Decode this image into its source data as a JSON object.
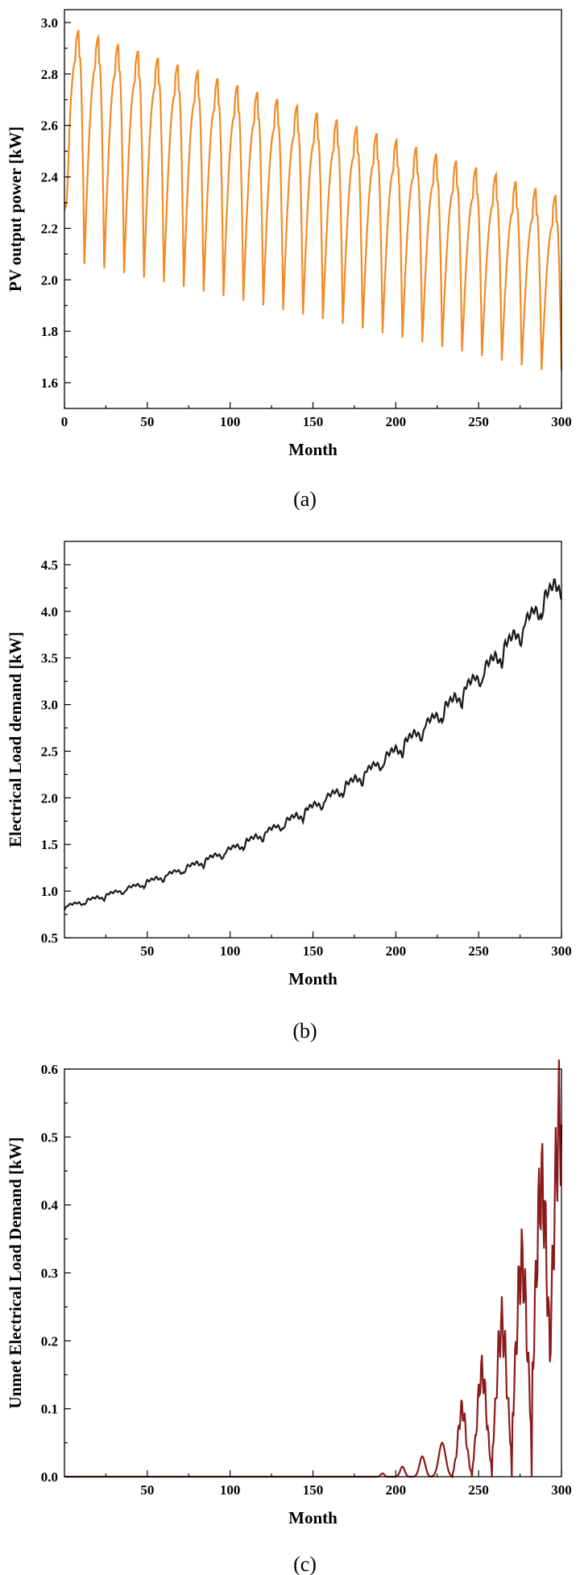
{
  "chart_data": [
    {
      "type": "line",
      "caption": "(a)",
      "xlabel": "Month",
      "ylabel": "PV output power [kW]",
      "xlim": [
        0,
        300
      ],
      "ylim": [
        1.5,
        3.05
      ],
      "xticks": [
        0,
        50,
        100,
        150,
        200,
        250,
        300
      ],
      "yticks": [
        1.6,
        1.8,
        2.0,
        2.2,
        2.4,
        2.6,
        2.8,
        3.0
      ],
      "ytick_labels": [
        "1.6",
        "1.8",
        "2.0",
        "2.2",
        "2.4",
        "2.6",
        "2.8",
        "3.0"
      ],
      "color": "#f28a25",
      "minor_ticks": true,
      "series": [
        {
          "model": "seasonal",
          "years": 25,
          "peak_start": 2.97,
          "peak_end": 2.33,
          "trough_start": 2.08,
          "trough_end": 1.65,
          "start_value": 2.3
        }
      ]
    },
    {
      "type": "line",
      "caption": "(b)",
      "xlabel": "Month",
      "ylabel": "Electrical Load demand [kW]",
      "xlim": [
        0,
        300
      ],
      "ylim": [
        0.5,
        4.75
      ],
      "xticks": [
        50,
        100,
        150,
        200,
        250,
        300
      ],
      "yticks": [
        0.5,
        1.0,
        1.5,
        2.0,
        2.5,
        3.0,
        3.5,
        4.0,
        4.5
      ],
      "ytick_labels": [
        "0.5",
        "1.0",
        "1.5",
        "2.0",
        "2.5",
        "3.0",
        "3.5",
        "4.0",
        "4.5"
      ],
      "color": "#1a1a1a",
      "minor_ticks": true,
      "series": [
        {
          "model": "stepped-growth",
          "start_value": 0.82,
          "end_value": 4.3,
          "years": 25
        }
      ]
    },
    {
      "type": "line",
      "caption": "(c)",
      "xlabel": "Month",
      "ylabel": "Unmet Electrical Load Demand [kW]",
      "xlim": [
        0,
        300
      ],
      "ylim": [
        0,
        0.6
      ],
      "xticks": [
        50,
        100,
        150,
        200,
        250,
        300
      ],
      "yticks": [
        0.0,
        0.1,
        0.2,
        0.3,
        0.4,
        0.5,
        0.6
      ],
      "ytick_labels": [
        "0.0",
        "0.1",
        "0.2",
        "0.3",
        "0.4",
        "0.5",
        "0.6"
      ],
      "color": "#8b1a1a",
      "minor_ticks": true,
      "series": [
        {
          "model": "annual-spikes",
          "spike_months": [
            192,
            204,
            216,
            228,
            240,
            252,
            264,
            276,
            288,
            299
          ],
          "spike_peaks": [
            0.005,
            0.015,
            0.03,
            0.05,
            0.1,
            0.155,
            0.225,
            0.315,
            0.43,
            0.525
          ]
        }
      ]
    }
  ]
}
